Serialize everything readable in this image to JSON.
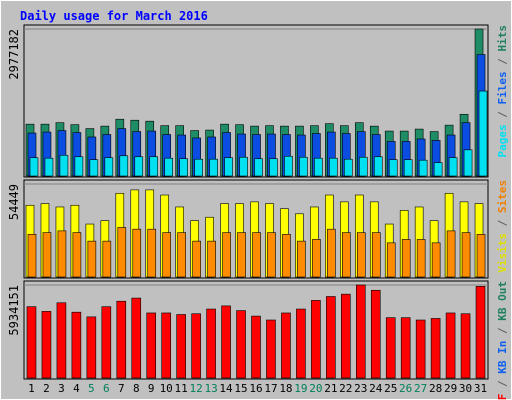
{
  "chart_data": {
    "type": "bar",
    "title": "Daily usage for March 2016",
    "categories": [
      "1",
      "2",
      "3",
      "4",
      "5",
      "6",
      "7",
      "8",
      "9",
      "10",
      "11",
      "12",
      "13",
      "14",
      "15",
      "16",
      "17",
      "18",
      "19",
      "20",
      "21",
      "22",
      "23",
      "24",
      "25",
      "26",
      "27",
      "28",
      "29",
      "30",
      "31"
    ],
    "weekend_days": [
      "5",
      "6",
      "12",
      "13",
      "19",
      "20",
      "26",
      "27"
    ],
    "panels": [
      {
        "id": "top",
        "ymax_label": "2977182",
        "ylim": [
          0,
          2977182
        ],
        "right_label_parts": [
          {
            "text": "Pages",
            "color": "#00e0f0"
          },
          {
            "text": " / ",
            "color": "#606060"
          },
          {
            "text": "Files",
            "color": "#1060f0"
          },
          {
            "text": " / ",
            "color": "#606060"
          },
          {
            "text": "Hits",
            "color": "#208060"
          }
        ],
        "series": [
          {
            "name": "Hits",
            "color": "#1e8c64",
            "values": [
              1050000,
              1050000,
              1080000,
              1040000,
              960000,
              1010000,
              1150000,
              1130000,
              1110000,
              1020000,
              1020000,
              920000,
              930000,
              1050000,
              1040000,
              1010000,
              1020000,
              1010000,
              1010000,
              1020000,
              1060000,
              1020000,
              1080000,
              1010000,
              910000,
              910000,
              950000,
              900000,
              1030000,
              1250000,
              2977182
            ]
          },
          {
            "name": "Files",
            "color": "#0a4de0",
            "values": [
              870000,
              890000,
              920000,
              880000,
              790000,
              840000,
              960000,
              900000,
              910000,
              840000,
              830000,
              770000,
              790000,
              880000,
              850000,
              840000,
              850000,
              840000,
              830000,
              860000,
              890000,
              860000,
              900000,
              840000,
              700000,
              700000,
              750000,
              720000,
              830000,
              1080000,
              2460000
            ]
          },
          {
            "name": "Pages",
            "color": "#00e0f0",
            "values": [
              370000,
              360000,
              420000,
              390000,
              330000,
              370000,
              410000,
              390000,
              390000,
              360000,
              350000,
              340000,
              340000,
              370000,
              380000,
              350000,
              350000,
              400000,
              380000,
              360000,
              360000,
              340000,
              380000,
              390000,
              330000,
              330000,
              320000,
              270000,
              370000,
              530000,
              1720000
            ]
          }
        ]
      },
      {
        "id": "mid",
        "ymax_label": "54449",
        "ylim": [
          0,
          54449
        ],
        "right_label_parts": [
          {
            "text": "Visits",
            "color": "#e0e000"
          },
          {
            "text": " / ",
            "color": "#606060"
          },
          {
            "text": "Sites",
            "color": "#f08000"
          }
        ],
        "series": [
          {
            "name": "Visits",
            "color": "#ffff00",
            "values": [
              42000,
              43000,
              41000,
              42000,
              31000,
              33000,
              49000,
              51000,
              51000,
              48000,
              41000,
              33000,
              35000,
              43000,
              43000,
              44000,
              43000,
              40000,
              37000,
              41000,
              48000,
              44000,
              48000,
              44000,
              31000,
              39000,
              41000,
              33000,
              49000,
              44000,
              43000
            ]
          },
          {
            "name": "Sites",
            "color": "#ff8c00",
            "values": [
              25000,
              26000,
              27000,
              26000,
              21000,
              21000,
              29000,
              28000,
              28000,
              26000,
              26000,
              21000,
              21000,
              26000,
              26000,
              26000,
              26000,
              25000,
              21000,
              22000,
              28000,
              26000,
              26000,
              26000,
              20000,
              22000,
              22000,
              20000,
              27000,
              26000,
              25000
            ]
          }
        ]
      },
      {
        "id": "bot",
        "ymax_label": "5934151",
        "ylim": [
          0,
          5934151
        ],
        "right_label_parts": [
          {
            "text": "KB F",
            "color": "#ff0000"
          },
          {
            "text": " / ",
            "color": "#606060"
          },
          {
            "text": "KB In",
            "color": "#1060f0"
          },
          {
            "text": " / ",
            "color": "#606060"
          },
          {
            "text": "KB Out",
            "color": "#208060"
          }
        ],
        "series": [
          {
            "name": "KB F",
            "color": "#ff0000",
            "values": [
              4550000,
              4250000,
              4800000,
              4200000,
              3900000,
              4550000,
              4900000,
              5100000,
              4150000,
              4150000,
              4050000,
              4100000,
              4400000,
              4600000,
              4300000,
              3950000,
              3700000,
              4150000,
              4400000,
              4950000,
              5200000,
              5350000,
              5934151,
              5600000,
              3850000,
              3850000,
              3700000,
              3800000,
              4150000,
              4100000,
              5850000
            ]
          }
        ]
      }
    ]
  },
  "colors": {
    "background": "#c0c0c0",
    "title": "#0000ff",
    "weekday_label": "#000000",
    "weekend_label": "#00805a",
    "gridline": "#808080"
  }
}
